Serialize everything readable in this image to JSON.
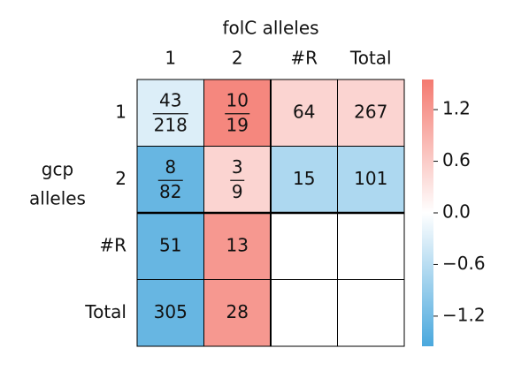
{
  "chart_data": {
    "type": "heatmap",
    "title": "folC alleles",
    "ylabel_lines": [
      "gcp",
      "alleles"
    ],
    "x_categories": [
      "1",
      "2",
      "#R",
      "Total"
    ],
    "y_categories": [
      "1",
      "2",
      "#R",
      "Total"
    ],
    "cells": [
      [
        {
          "num": "43",
          "den": "218"
        },
        {
          "num": "10",
          "den": "19"
        },
        "64",
        "267"
      ],
      [
        {
          "num": "8",
          "den": "82"
        },
        {
          "num": "3",
          "den": "9"
        },
        "15",
        "101"
      ],
      [
        "51",
        "13",
        null,
        null
      ],
      [
        "305",
        "28",
        null,
        null
      ]
    ],
    "values": [
      [
        -0.3,
        1.4,
        0.5,
        0.5
      ],
      [
        -1.3,
        0.5,
        -0.7,
        -0.7
      ],
      [
        -1.3,
        1.2,
        null,
        null
      ],
      [
        -1.3,
        1.2,
        null,
        null
      ]
    ],
    "colors": {
      "low": "#4aa8dd",
      "mid": "#ffffff",
      "high": "#f47a70"
    },
    "clim": [
      -1.55,
      1.55
    ],
    "cticks": [
      1.2,
      0.6,
      {
        "value": 0.0,
        "label": "0.0"
      },
      {
        "value": -0.6,
        "label": "−0.6"
      },
      {
        "value": -1.2,
        "label": "−1.2"
      }
    ]
  }
}
